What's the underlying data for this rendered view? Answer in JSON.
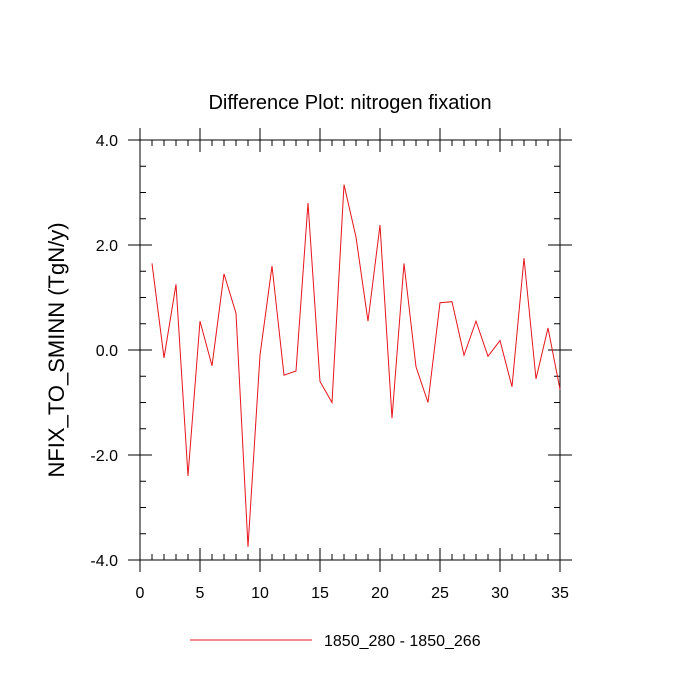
{
  "chart_data": {
    "type": "line",
    "title": "Difference Plot: nitrogen fixation",
    "xlabel": "",
    "ylabel": "NFIX_TO_SMINN  (TgN/y)",
    "xlim": [
      0,
      35
    ],
    "ylim": [
      -4.0,
      4.0
    ],
    "x_ticks": [
      0,
      5,
      10,
      15,
      20,
      25,
      30,
      35
    ],
    "x_tick_labels": [
      "0",
      "5",
      "10",
      "15",
      "20",
      "25",
      "30",
      "35"
    ],
    "y_ticks": [
      -4.0,
      -2.0,
      0.0,
      2.0,
      4.0
    ],
    "y_tick_labels": [
      "-4.0",
      "-2.0",
      "0.0",
      "2.0",
      "4.0"
    ],
    "grid": false,
    "legend_position": "bottom-center",
    "series": [
      {
        "name": "1850_280 - 1850_266",
        "color": "#e8141c",
        "x": [
          1,
          2,
          3,
          4,
          5,
          6,
          7,
          8,
          9,
          10,
          11,
          12,
          13,
          14,
          15,
          16,
          17,
          18,
          19,
          20,
          21,
          22,
          23,
          24,
          25,
          26,
          27,
          28,
          29,
          30,
          31,
          32,
          33,
          34,
          35
        ],
        "values": [
          1.65,
          -0.15,
          1.25,
          -2.4,
          0.55,
          -0.3,
          1.45,
          0.7,
          -3.75,
          -0.1,
          1.6,
          -0.48,
          -0.4,
          2.8,
          -0.6,
          -1.0,
          3.15,
          2.15,
          0.55,
          2.38,
          -1.3,
          1.65,
          -0.32,
          -1.0,
          0.9,
          0.92,
          -0.1,
          0.55,
          -0.12,
          0.18,
          -0.7,
          1.75,
          -0.55,
          0.42,
          -0.75
        ]
      }
    ]
  }
}
